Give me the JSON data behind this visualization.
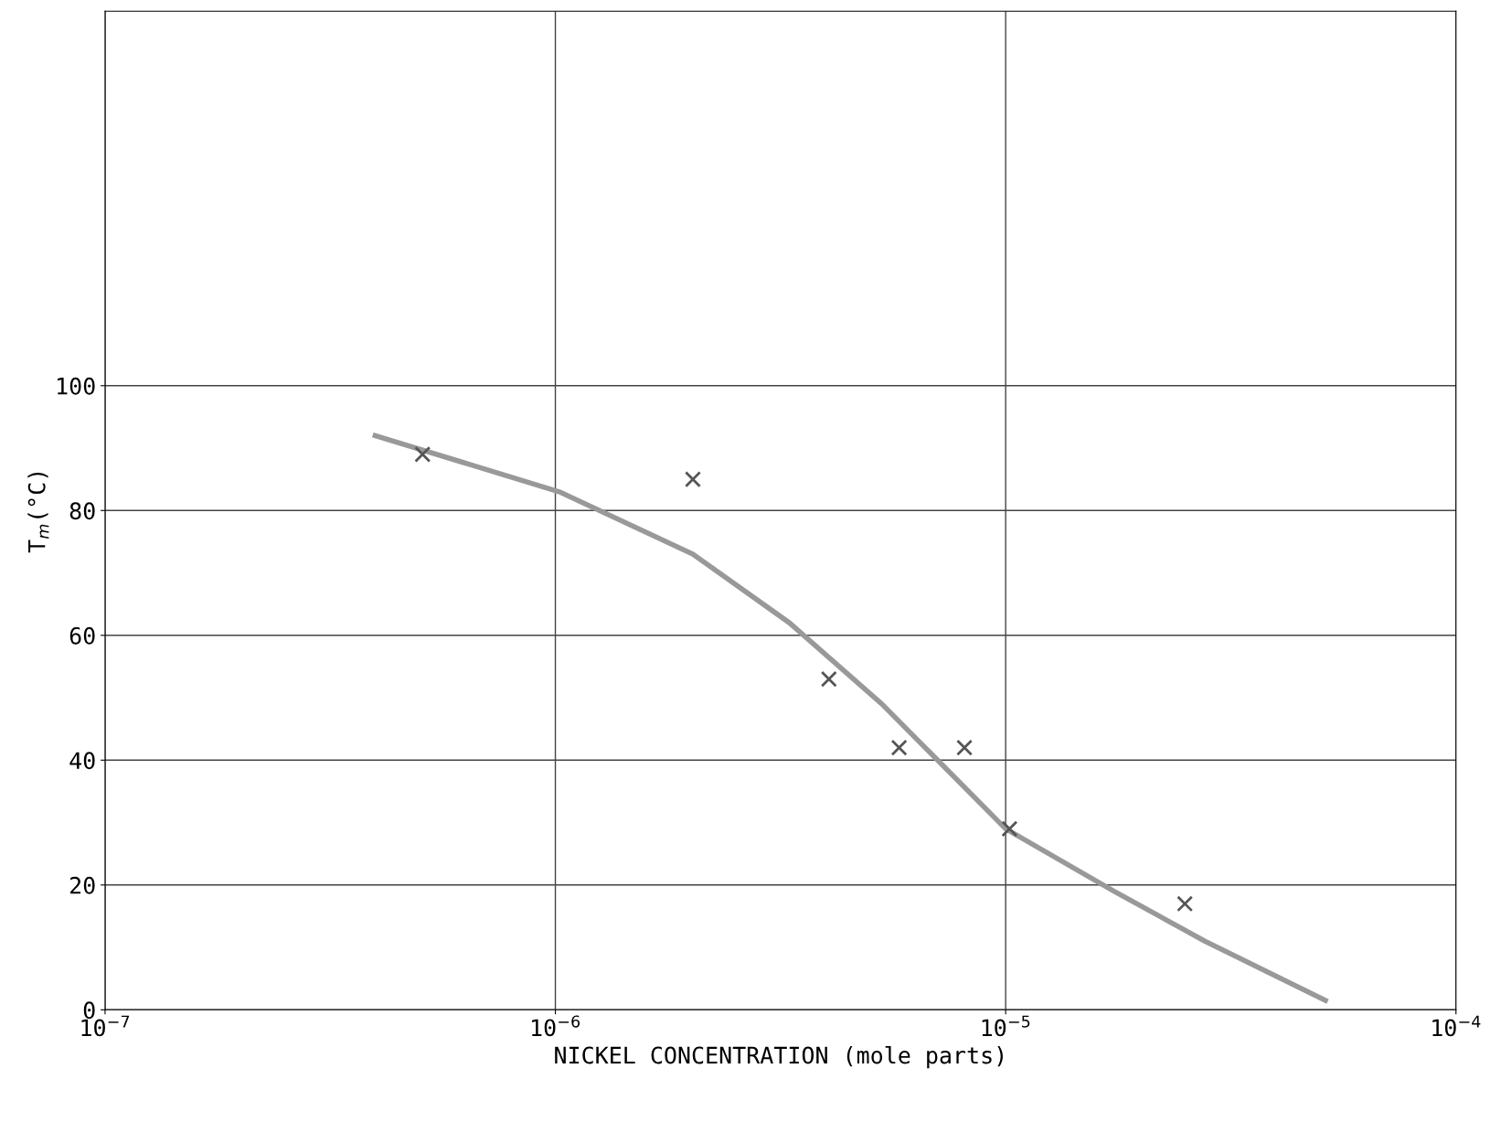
{
  "chart_data": {
    "type": "scatter",
    "xlabel": "NICKEL CONCENTRATION (mole parts)",
    "ylabel": "T$_{m}$(°C)",
    "log": "x",
    "xlim": [
      1e-07,
      0.0001
    ],
    "xticks": [
      {
        "value": 1e-07,
        "label": "10$^{−7}$"
      },
      {
        "value": 1e-06,
        "label": "10$^{−6}$"
      },
      {
        "value": 1e-05,
        "label": "10$^{−5}$"
      },
      {
        "value": 0.0001,
        "label": "10$^{−4}$"
      }
    ],
    "ylim": [
      0,
      160
    ],
    "yticks": [
      0,
      20,
      40,
      60,
      80,
      100
    ],
    "grid": true,
    "marker": "cross",
    "series": [
      {
        "color": "#555555",
        "x": [
          5.07e-07,
          2.02e-06,
          4.05e-06,
          5.8e-06,
          8.1e-06,
          1.02e-05,
          2.5e-05
        ],
        "values": [
          89,
          85,
          53,
          42,
          42,
          29,
          17
        ]
      },
      {
        "type": "line",
        "color": "#999999",
        "marker": "none",
        "x": [
          3.98e-07,
          1.02e-06,
          2.02e-06,
          3.31e-06,
          5.31e-06,
          1e-05,
          1.74e-05,
          2.77e-05,
          5.13e-05
        ],
        "values": [
          92,
          83,
          73,
          62,
          49,
          29,
          19,
          11,
          1.5
        ]
      }
    ]
  }
}
